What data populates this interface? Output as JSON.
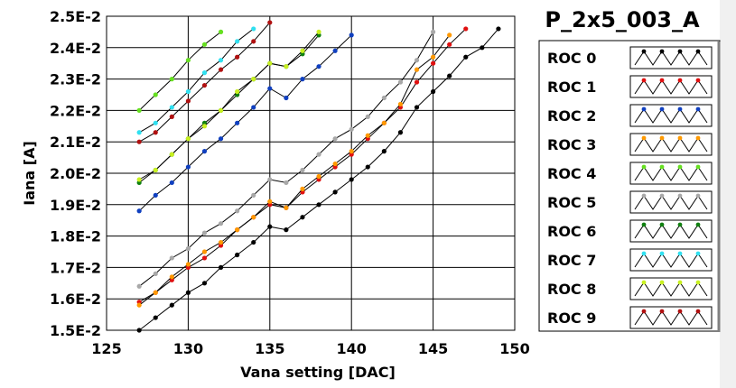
{
  "window": {
    "title": "P_2x5_003_A"
  },
  "chart_data": {
    "type": "line",
    "title": "P_2x5_003_A",
    "xlabel": "Vana setting [DAC]",
    "ylabel": "Iana [A]",
    "xlim": [
      125,
      150
    ],
    "ylim": [
      0.015,
      0.025
    ],
    "x_ticks": [
      125,
      130,
      135,
      140,
      145,
      150
    ],
    "x_tick_labels": [
      "125",
      "130",
      "135",
      "140",
      "145",
      "150"
    ],
    "y_ticks": [
      0.015,
      0.016,
      0.017,
      0.018,
      0.019,
      0.02,
      0.021,
      0.022,
      0.023,
      0.024,
      0.025
    ],
    "y_tick_labels": [
      "1.5E-2",
      "1.6E-2",
      "1.7E-2",
      "1.8E-2",
      "1.9E-2",
      "2.0E-2",
      "2.1E-2",
      "2.2E-2",
      "2.3E-2",
      "2.4E-2",
      "2.5E-2"
    ],
    "grid": true,
    "legend_position": "right",
    "series": [
      {
        "name": "ROC 0",
        "marker_color": "#000000",
        "points": [
          [
            127,
            0.015
          ],
          [
            128,
            0.0154
          ],
          [
            129,
            0.0158
          ],
          [
            130,
            0.0162
          ],
          [
            131,
            0.0165
          ],
          [
            132,
            0.017
          ],
          [
            133,
            0.0174
          ],
          [
            134,
            0.0178
          ],
          [
            135,
            0.0183
          ],
          [
            136,
            0.0182
          ],
          [
            137,
            0.0186
          ],
          [
            138,
            0.019
          ],
          [
            139,
            0.0194
          ],
          [
            140,
            0.0198
          ],
          [
            141,
            0.0202
          ],
          [
            142,
            0.0207
          ],
          [
            143,
            0.0213
          ],
          [
            144,
            0.0221
          ],
          [
            145,
            0.0226
          ],
          [
            146,
            0.0231
          ],
          [
            147,
            0.0237
          ],
          [
            148,
            0.024
          ],
          [
            149,
            0.0246
          ]
        ]
      },
      {
        "name": "ROC 1",
        "marker_color": "#e01010",
        "points": [
          [
            127,
            0.0159
          ],
          [
            128,
            0.0162
          ],
          [
            129,
            0.0166
          ],
          [
            130,
            0.017
          ],
          [
            131,
            0.0173
          ],
          [
            132,
            0.0177
          ],
          [
            133,
            0.0182
          ],
          [
            134,
            0.0186
          ],
          [
            135,
            0.019
          ],
          [
            136,
            0.0189
          ],
          [
            137,
            0.0194
          ],
          [
            138,
            0.0198
          ],
          [
            139,
            0.0202
          ],
          [
            140,
            0.0206
          ],
          [
            141,
            0.0211
          ],
          [
            142,
            0.0216
          ],
          [
            143,
            0.0221
          ],
          [
            144,
            0.0229
          ],
          [
            145,
            0.0235
          ],
          [
            146,
            0.0241
          ],
          [
            147,
            0.0246
          ]
        ]
      },
      {
        "name": "ROC 2",
        "marker_color": "#1040c0",
        "points": [
          [
            127,
            0.0188
          ],
          [
            128,
            0.0193
          ],
          [
            129,
            0.0197
          ],
          [
            130,
            0.0202
          ],
          [
            131,
            0.0207
          ],
          [
            132,
            0.0211
          ],
          [
            133,
            0.0216
          ],
          [
            134,
            0.0221
          ],
          [
            135,
            0.0227
          ],
          [
            136,
            0.0224
          ],
          [
            137,
            0.023
          ],
          [
            138,
            0.0234
          ],
          [
            139,
            0.0239
          ],
          [
            140,
            0.0244
          ]
        ]
      },
      {
        "name": "ROC 3",
        "marker_color": "#ff9900",
        "points": [
          [
            127,
            0.0158
          ],
          [
            128,
            0.0162
          ],
          [
            129,
            0.0167
          ],
          [
            130,
            0.0171
          ],
          [
            131,
            0.0175
          ],
          [
            132,
            0.0178
          ],
          [
            133,
            0.0182
          ],
          [
            134,
            0.0186
          ],
          [
            135,
            0.0191
          ],
          [
            136,
            0.0189
          ],
          [
            137,
            0.0195
          ],
          [
            138,
            0.0199
          ],
          [
            139,
            0.0203
          ],
          [
            140,
            0.0207
          ],
          [
            141,
            0.0212
          ],
          [
            142,
            0.0216
          ],
          [
            143,
            0.0222
          ],
          [
            144,
            0.0233
          ],
          [
            145,
            0.0237
          ],
          [
            146,
            0.0244
          ]
        ]
      },
      {
        "name": "ROC 4",
        "marker_color": "#66e020",
        "points": [
          [
            127,
            0.022
          ],
          [
            128,
            0.0225
          ],
          [
            129,
            0.023
          ],
          [
            130,
            0.0236
          ],
          [
            131,
            0.0241
          ],
          [
            132,
            0.0245
          ]
        ]
      },
      {
        "name": "ROC 5",
        "marker_color": "#a8a8a8",
        "points": [
          [
            127,
            0.0164
          ],
          [
            128,
            0.0168
          ],
          [
            129,
            0.0173
          ],
          [
            130,
            0.0176
          ],
          [
            131,
            0.0181
          ],
          [
            132,
            0.0184
          ],
          [
            133,
            0.0188
          ],
          [
            134,
            0.0193
          ],
          [
            135,
            0.0198
          ],
          [
            136,
            0.0197
          ],
          [
            137,
            0.0201
          ],
          [
            138,
            0.0206
          ],
          [
            139,
            0.0211
          ],
          [
            140,
            0.0214
          ],
          [
            141,
            0.0218
          ],
          [
            142,
            0.0224
          ],
          [
            143,
            0.0229
          ],
          [
            144,
            0.0236
          ],
          [
            145,
            0.0245
          ]
        ]
      },
      {
        "name": "ROC 6",
        "marker_color": "#108010",
        "points": [
          [
            127,
            0.0197
          ],
          [
            128,
            0.0201
          ],
          [
            129,
            0.0206
          ],
          [
            130,
            0.0211
          ],
          [
            131,
            0.0216
          ],
          [
            132,
            0.022
          ],
          [
            133,
            0.0225
          ],
          [
            134,
            0.023
          ],
          [
            135,
            0.0235
          ],
          [
            136,
            0.0234
          ],
          [
            137,
            0.0238
          ],
          [
            138,
            0.0244
          ]
        ]
      },
      {
        "name": "ROC 7",
        "marker_color": "#30e0f0",
        "points": [
          [
            127,
            0.0213
          ],
          [
            128,
            0.0216
          ],
          [
            129,
            0.0221
          ],
          [
            130,
            0.0226
          ],
          [
            131,
            0.0232
          ],
          [
            132,
            0.0236
          ],
          [
            133,
            0.0242
          ],
          [
            134,
            0.0246
          ]
        ]
      },
      {
        "name": "ROC 8",
        "marker_color": "#c8f020",
        "points": [
          [
            127,
            0.0198
          ],
          [
            128,
            0.0201
          ],
          [
            129,
            0.0206
          ],
          [
            130,
            0.0211
          ],
          [
            131,
            0.0215
          ],
          [
            132,
            0.022
          ],
          [
            133,
            0.0226
          ],
          [
            134,
            0.023
          ],
          [
            135,
            0.0235
          ],
          [
            136,
            0.0234
          ],
          [
            137,
            0.0239
          ],
          [
            138,
            0.0245
          ]
        ]
      },
      {
        "name": "ROC 9",
        "marker_color": "#b01010",
        "points": [
          [
            127,
            0.021
          ],
          [
            128,
            0.0213
          ],
          [
            129,
            0.0218
          ],
          [
            130,
            0.0223
          ],
          [
            131,
            0.0228
          ],
          [
            132,
            0.0233
          ],
          [
            133,
            0.0237
          ],
          [
            134,
            0.0242
          ],
          [
            135,
            0.0248
          ]
        ]
      }
    ]
  }
}
